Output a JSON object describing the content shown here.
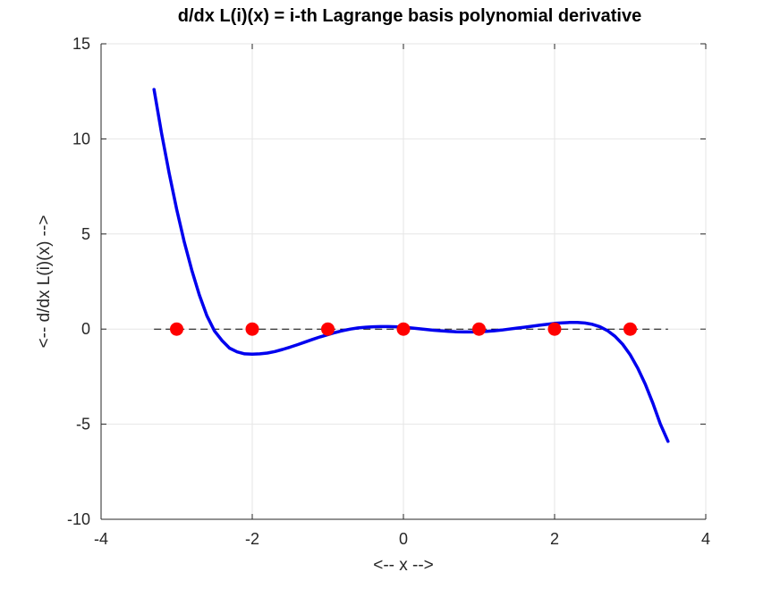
{
  "chart_data": {
    "type": "line",
    "title": "d/dx L(i)(x) = i-th Lagrange basis polynomial derivative",
    "xlabel": "<-- x -->",
    "ylabel": "<-- d/dx L(i)(x) -->",
    "xlim": [
      -4,
      4
    ],
    "ylim": [
      -10,
      15
    ],
    "xticks": [
      -4,
      -2,
      0,
      2,
      4
    ],
    "yticks": [
      -10,
      -5,
      0,
      5,
      10,
      15
    ],
    "xtick_labels": [
      "-4",
      "-2",
      "0",
      "2",
      "4"
    ],
    "ytick_labels": [
      "-10",
      "-5",
      "0",
      "5",
      "10",
      "15"
    ],
    "grid": true,
    "legend": "none",
    "series": [
      {
        "color": "#0000ee",
        "style": "solid-thick",
        "x": [
          -3.3,
          -3.2,
          -3.1,
          -3.0,
          -2.9,
          -2.8,
          -2.7,
          -2.6,
          -2.5,
          -2.4,
          -2.3,
          -2.2,
          -2.1,
          -2.0,
          -1.9,
          -1.8,
          -1.7,
          -1.6,
          -1.5,
          -1.4,
          -1.3,
          -1.2,
          -1.1,
          -1.0,
          -0.9,
          -0.8,
          -0.7,
          -0.6,
          -0.5,
          -0.4,
          -0.3,
          -0.2,
          -0.1,
          0.0,
          0.1,
          0.2,
          0.3,
          0.4,
          0.5,
          0.6,
          0.7,
          0.8,
          0.9,
          1.0,
          1.1,
          1.2,
          1.3,
          1.4,
          1.5,
          1.6,
          1.7,
          1.8,
          1.9,
          2.0,
          2.1,
          2.2,
          2.3,
          2.4,
          2.5,
          2.6,
          2.7,
          2.8,
          2.9,
          3.0,
          3.1,
          3.2,
          3.3,
          3.4,
          3.5
        ],
        "y": [
          12.6,
          10.3,
          8.2,
          6.3,
          4.6,
          3.1,
          1.8,
          0.7,
          -0.1,
          -0.6,
          -1.0,
          -1.2,
          -1.3,
          -1.32,
          -1.3,
          -1.26,
          -1.18,
          -1.07,
          -0.95,
          -0.82,
          -0.68,
          -0.54,
          -0.41,
          -0.29,
          -0.18,
          -0.08,
          0.0,
          0.06,
          0.1,
          0.12,
          0.13,
          0.13,
          0.12,
          0.1,
          0.06,
          0.02,
          -0.02,
          -0.06,
          -0.09,
          -0.12,
          -0.14,
          -0.15,
          -0.15,
          -0.14,
          -0.12,
          -0.09,
          -0.05,
          0.0,
          0.05,
          0.1,
          0.15,
          0.2,
          0.25,
          0.3,
          0.33,
          0.35,
          0.35,
          0.32,
          0.25,
          0.12,
          -0.08,
          -0.38,
          -0.8,
          -1.35,
          -2.05,
          -2.9,
          -3.9,
          -5.0,
          -5.9
        ]
      },
      {
        "color": "#000000",
        "style": "dashed",
        "x": [
          -3.3,
          3.5
        ],
        "y": [
          0,
          0
        ]
      },
      {
        "color": "#ff0000",
        "style": "markers",
        "x": [
          -3,
          -2,
          -1,
          0,
          1,
          2,
          3
        ],
        "y": [
          0,
          0,
          0,
          0,
          0,
          0,
          0
        ]
      }
    ]
  }
}
